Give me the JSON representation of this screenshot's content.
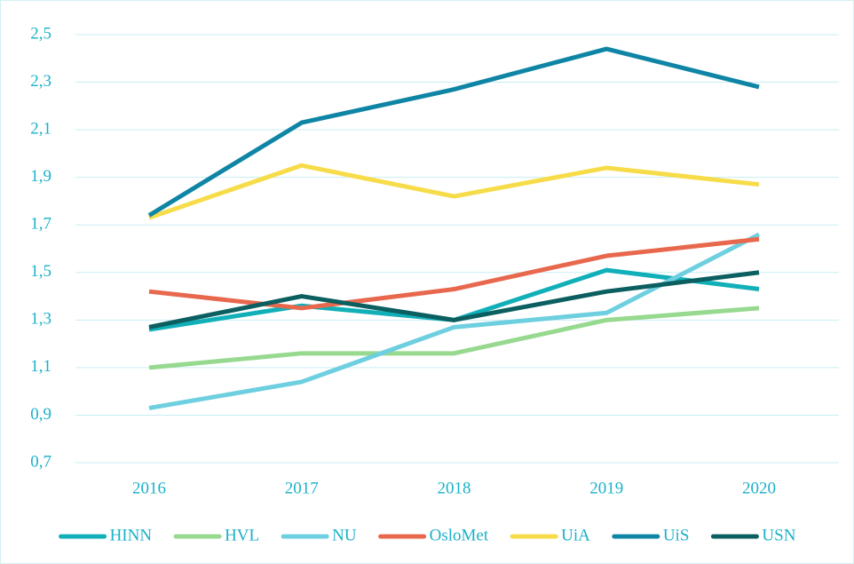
{
  "chart_data": {
    "type": "line",
    "x": [
      "2016",
      "2017",
      "2018",
      "2019",
      "2020"
    ],
    "ylim": [
      0.7,
      2.5
    ],
    "yticks": [
      {
        "value": 0.7,
        "label": "0,7"
      },
      {
        "value": 0.9,
        "label": "0,9"
      },
      {
        "value": 1.1,
        "label": "1,1"
      },
      {
        "value": 1.3,
        "label": "1,3"
      },
      {
        "value": 1.5,
        "label": "1,5"
      },
      {
        "value": 1.7,
        "label": "1,7"
      },
      {
        "value": 1.9,
        "label": "1,9"
      },
      {
        "value": 2.1,
        "label": "2,1"
      },
      {
        "value": 2.3,
        "label": "2,3"
      },
      {
        "value": 2.5,
        "label": "2,5"
      }
    ],
    "grid": true,
    "legend": "bottom",
    "series": [
      {
        "name": "HINN",
        "color": "#11b0b8",
        "values": [
          1.26,
          1.36,
          1.3,
          1.51,
          1.43
        ]
      },
      {
        "name": "HVL",
        "color": "#96d98f",
        "values": [
          1.1,
          1.16,
          1.16,
          1.3,
          1.35
        ]
      },
      {
        "name": "NU",
        "color": "#6dcfdf",
        "values": [
          0.93,
          1.04,
          1.27,
          1.33,
          1.66
        ]
      },
      {
        "name": "OsloMet",
        "color": "#e8684e",
        "values": [
          1.42,
          1.35,
          1.43,
          1.57,
          1.64
        ]
      },
      {
        "name": "UiA",
        "color": "#f7dc4a",
        "values": [
          1.73,
          1.95,
          1.82,
          1.94,
          1.87
        ]
      },
      {
        "name": "UiS",
        "color": "#0f85a5",
        "values": [
          1.74,
          2.13,
          2.27,
          2.44,
          2.28
        ]
      },
      {
        "name": "USN",
        "color": "#0c5f60",
        "values": [
          1.27,
          1.4,
          1.3,
          1.42,
          1.5
        ]
      }
    ]
  }
}
